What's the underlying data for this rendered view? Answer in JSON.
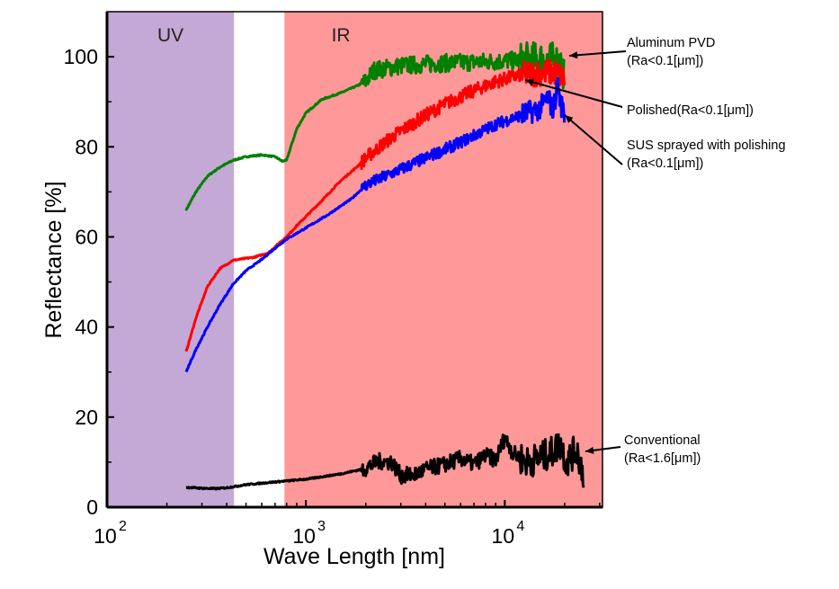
{
  "chart_data": {
    "type": "line",
    "title": "",
    "xlabel": "Wave Length [nm]",
    "ylabel": "Reflectance [%]",
    "xscale": "log",
    "xlim": [
      100,
      31000
    ],
    "ylim": [
      0,
      110
    ],
    "xticks": [
      {
        "base": "10",
        "exp": "2",
        "value": 100
      },
      {
        "base": "10",
        "exp": "3",
        "value": 1000
      },
      {
        "base": "10",
        "exp": "4",
        "value": 10000
      }
    ],
    "yticks": [
      0,
      20,
      40,
      60,
      80,
      100
    ],
    "grid": false,
    "regions": [
      {
        "label": "UV",
        "from": 100,
        "to": 435,
        "color": "#c4a8d6"
      },
      {
        "label": "IR",
        "from": 780,
        "to": 31000,
        "color": "#ff9999"
      }
    ],
    "series": [
      {
        "name": "Aluminum PVD (Ra<0.1[μm])",
        "color": "#008000",
        "noise": 2.0,
        "points": [
          [
            250,
            66
          ],
          [
            280,
            70
          ],
          [
            320,
            73.5
          ],
          [
            370,
            75.5
          ],
          [
            430,
            77
          ],
          [
            500,
            77.8
          ],
          [
            600,
            78.2
          ],
          [
            700,
            77.8
          ],
          [
            760,
            76.8
          ],
          [
            800,
            77
          ],
          [
            840,
            80
          ],
          [
            900,
            84
          ],
          [
            1000,
            87.5
          ],
          [
            1200,
            90.5
          ],
          [
            1500,
            92
          ],
          [
            1800,
            93.5
          ],
          [
            2000,
            94.5
          ],
          [
            2200,
            97
          ],
          [
            3000,
            98
          ],
          [
            5000,
            98.6
          ],
          [
            8000,
            98.9
          ],
          [
            12000,
            99.2
          ],
          [
            16000,
            99.5
          ],
          [
            19000,
            99
          ],
          [
            20000,
            96
          ]
        ]
      },
      {
        "name": "Polished(Ra<0.1[μm])",
        "color": "#ff0000",
        "noise": 1.5,
        "points": [
          [
            250,
            34.5
          ],
          [
            280,
            42
          ],
          [
            320,
            49
          ],
          [
            370,
            53
          ],
          [
            430,
            54.8
          ],
          [
            550,
            55.5
          ],
          [
            650,
            56.5
          ],
          [
            750,
            59
          ],
          [
            800,
            60
          ],
          [
            900,
            62.5
          ],
          [
            1200,
            68
          ],
          [
            1500,
            72.5
          ],
          [
            1800,
            75.5
          ],
          [
            2000,
            77.5
          ],
          [
            2500,
            81
          ],
          [
            3000,
            83.5
          ],
          [
            4000,
            87
          ],
          [
            5000,
            89.5
          ],
          [
            7000,
            92.5
          ],
          [
            9000,
            94.5
          ],
          [
            12000,
            96
          ],
          [
            15000,
            96.5
          ],
          [
            18000,
            96.5
          ],
          [
            20000,
            95
          ]
        ]
      },
      {
        "name": "SUS sprayed with polishing (Ra<0.1[μm])",
        "color": "#0000ff",
        "noise": 1.3,
        "points": [
          [
            250,
            30
          ],
          [
            280,
            35
          ],
          [
            320,
            40
          ],
          [
            370,
            45
          ],
          [
            430,
            49.5
          ],
          [
            500,
            52.5
          ],
          [
            600,
            55
          ],
          [
            700,
            57.5
          ],
          [
            800,
            59.5
          ],
          [
            1000,
            62
          ],
          [
            1300,
            65
          ],
          [
            1700,
            68.5
          ],
          [
            2000,
            71.5
          ],
          [
            3000,
            75
          ],
          [
            4000,
            77.5
          ],
          [
            6000,
            81
          ],
          [
            9000,
            85
          ],
          [
            12000,
            87
          ],
          [
            15000,
            88.5
          ],
          [
            16500,
            91
          ],
          [
            17500,
            88
          ],
          [
            18500,
            94
          ],
          [
            19000,
            90
          ],
          [
            20000,
            87
          ]
        ]
      },
      {
        "name": "Conventional (Ra<1.6[μm])",
        "color": "#000000",
        "noise": 1.8,
        "points": [
          [
            250,
            4.4
          ],
          [
            300,
            4.2
          ],
          [
            350,
            4.1
          ],
          [
            400,
            4.3
          ],
          [
            500,
            5
          ],
          [
            700,
            5.6
          ],
          [
            1000,
            6.2
          ],
          [
            1500,
            7.4
          ],
          [
            2000,
            8.6
          ],
          [
            2300,
            10.2
          ],
          [
            2700,
            10
          ],
          [
            3000,
            7
          ],
          [
            3500,
            7.2
          ],
          [
            4000,
            8.4
          ],
          [
            5000,
            9.5
          ],
          [
            6000,
            10.8
          ],
          [
            7000,
            9.5
          ],
          [
            8000,
            11.5
          ],
          [
            9000,
            10.5
          ],
          [
            10000,
            15.5
          ],
          [
            11000,
            12
          ],
          [
            13000,
            10
          ],
          [
            15000,
            11
          ],
          [
            17000,
            12
          ],
          [
            19000,
            14
          ],
          [
            20500,
            10
          ],
          [
            23000,
            13
          ],
          [
            25000,
            7
          ]
        ]
      }
    ],
    "annotations": [
      {
        "series": 0,
        "lines": [
          "Aluminum PVD",
          "(Ra<0.1[μm])"
        ]
      },
      {
        "series": 1,
        "lines": [
          "Polished(Ra<0.1[μm])"
        ]
      },
      {
        "series": 2,
        "lines": [
          "SUS sprayed with polishing",
          "(Ra<0.1[μm])"
        ]
      },
      {
        "series": 3,
        "lines": [
          "Conventional",
          "(Ra<1.6[μm])"
        ]
      }
    ]
  }
}
